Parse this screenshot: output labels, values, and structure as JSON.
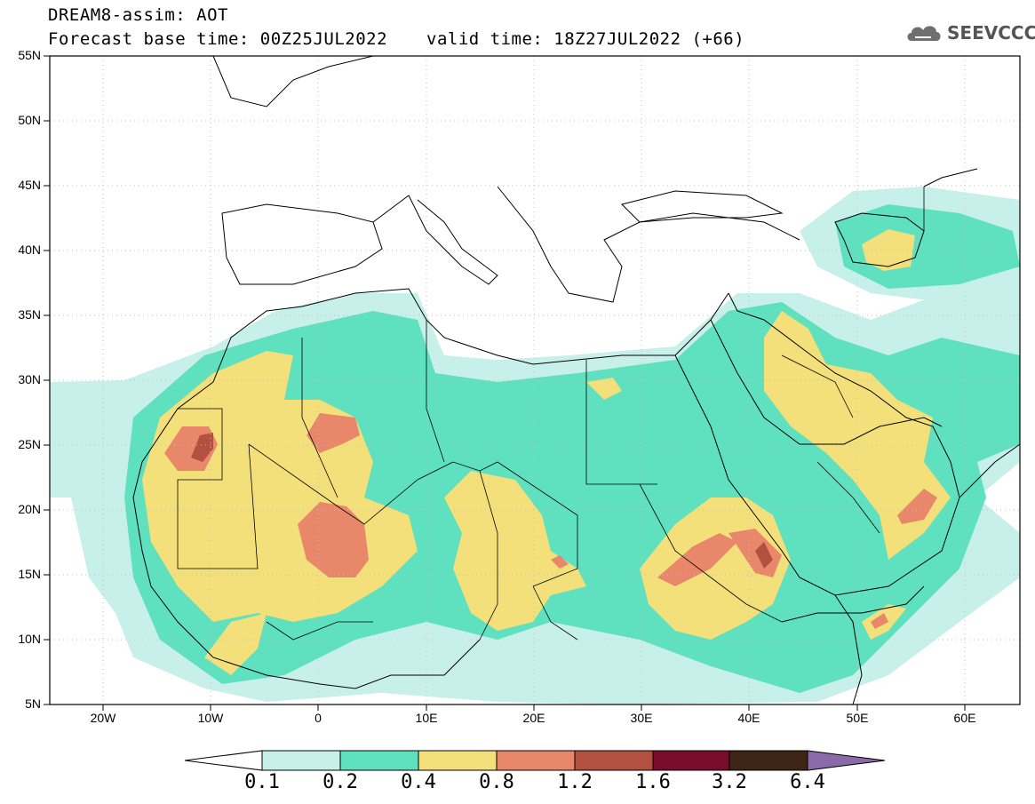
{
  "header": {
    "title": "DREAM8-assim: AOT",
    "base_time": "Forecast base time: 00Z25JUL2022",
    "valid_time": "valid time: 18Z27JUL2022 (+66)",
    "logo_text": "SEEVCCC"
  },
  "map": {
    "projection": "lat-lon",
    "lat_range": [
      5,
      55
    ],
    "lon_range": [
      -25,
      65
    ],
    "lat_ticks": [
      "55N",
      "50N",
      "45N",
      "40N",
      "35N",
      "30N",
      "25N",
      "20N",
      "15N",
      "10N",
      "5N"
    ],
    "lon_ticks": [
      "20W",
      "10W",
      "0",
      "10E",
      "20E",
      "30E",
      "40E",
      "50E",
      "60E"
    ],
    "grid": "dotted"
  },
  "colorbar": {
    "levels": [
      "0.1",
      "0.2",
      "0.4",
      "0.8",
      "1.2",
      "1.6",
      "3.2",
      "6.4"
    ],
    "colors": [
      "#c8f0ea",
      "#5fe0bf",
      "#f3e07a",
      "#e8876a",
      "#b4503f",
      "#7a0c2b",
      "#3d2616",
      "#8a6aa8"
    ]
  }
}
